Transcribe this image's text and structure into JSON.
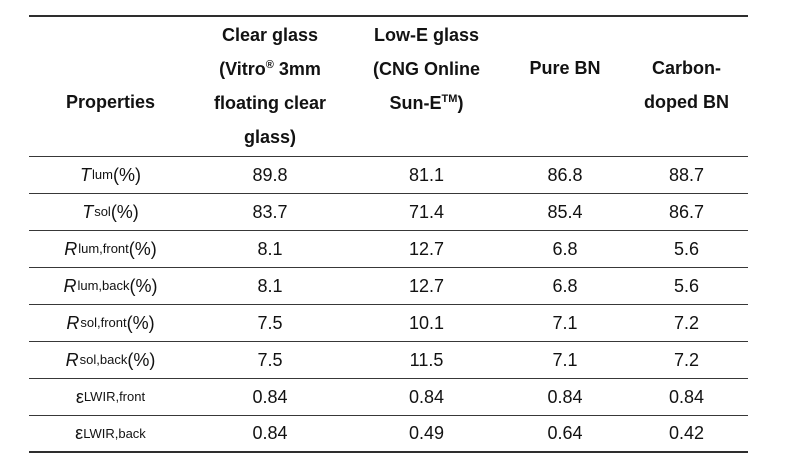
{
  "page": {
    "background_color": "#ffffff",
    "text_color": "#121212",
    "rule_color": "#2e2e2e"
  },
  "table": {
    "header": [
      {
        "name": "properties",
        "lines": [
          "Properties"
        ]
      },
      {
        "name": "clear-glass",
        "lines": [
          "Clear glass",
          "(Vitro^{®} 3mm",
          "floating clear",
          "glass)"
        ]
      },
      {
        "name": "low-e-glass",
        "lines": [
          "Low-E glass",
          "(CNG Online",
          "Sun-E^{TM})"
        ]
      },
      {
        "name": "pure-bn",
        "lines": [
          "Pure BN"
        ]
      },
      {
        "name": "carbon-doped-bn",
        "lines": [
          "Carbon-",
          "doped BN"
        ]
      }
    ],
    "rows": [
      {
        "label": "*T*_{lum} (%)",
        "values": [
          "89.8",
          "81.1",
          "86.8",
          "88.7"
        ]
      },
      {
        "label": "*T*_{sol} (%)",
        "values": [
          "83.7",
          "71.4",
          "85.4",
          "86.7"
        ]
      },
      {
        "label": "*R*_{lum,front} (%)",
        "values": [
          "8.1",
          "12.7",
          "6.8",
          "5.6"
        ]
      },
      {
        "label": "*R*_{lum,back} (%)",
        "values": [
          "8.1",
          "12.7",
          "6.8",
          "5.6"
        ]
      },
      {
        "label": "*R*_{sol,front} (%)",
        "values": [
          "7.5",
          "10.1",
          "7.1",
          "7.2"
        ]
      },
      {
        "label": "*R*_{sol,back} (%)",
        "values": [
          "7.5",
          "11.5",
          "7.1",
          "7.2"
        ]
      },
      {
        "label": "ε_{LWIR,front}",
        "values": [
          "0.84",
          "0.84",
          "0.84",
          "0.84"
        ]
      },
      {
        "label": "ε_{LWIR,back}",
        "values": [
          "0.84",
          "0.49",
          "0.64",
          "0.42"
        ]
      }
    ]
  }
}
